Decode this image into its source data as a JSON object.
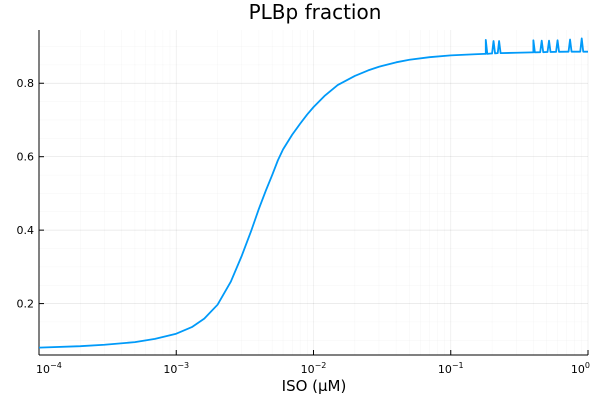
{
  "chart_data": {
    "type": "line",
    "title": "PLBp fraction",
    "xlabel": "ISO (μM)",
    "ylabel": "",
    "x_scale": "log10",
    "xlim": [
      0.0001,
      1
    ],
    "ylim": [
      0.06,
      0.945
    ],
    "x_ticks": [
      {
        "base": "10",
        "exp": "−4"
      },
      {
        "base": "10",
        "exp": "−3"
      },
      {
        "base": "10",
        "exp": "−2"
      },
      {
        "base": "10",
        "exp": "−1"
      },
      {
        "base": "10",
        "exp": "0"
      }
    ],
    "y_ticks": [
      "0.2",
      "0.4",
      "0.6",
      "0.8"
    ],
    "grid": true,
    "legend": "none",
    "line_color": "#009af9",
    "series": [
      {
        "x": [
          0.0001,
          0.0002,
          0.0003,
          0.0005,
          0.0007,
          0.001,
          0.0013,
          0.0016,
          0.002,
          0.0025,
          0.003,
          0.0035,
          0.004,
          0.0045,
          0.005,
          0.0055,
          0.006,
          0.007,
          0.008,
          0.009,
          0.01,
          0.012,
          0.015,
          0.02,
          0.025,
          0.03,
          0.04,
          0.05,
          0.07,
          0.1,
          0.15,
          0.18,
          0.2,
          0.22,
          0.3,
          0.4,
          0.5,
          0.7,
          1.0
        ],
        "y": [
          0.08,
          0.084,
          0.088,
          0.095,
          0.104,
          0.118,
          0.136,
          0.159,
          0.197,
          0.26,
          0.33,
          0.396,
          0.458,
          0.508,
          0.55,
          0.59,
          0.62,
          0.66,
          0.69,
          0.715,
          0.735,
          0.765,
          0.795,
          0.82,
          0.835,
          0.845,
          0.857,
          0.864,
          0.871,
          0.876,
          0.879,
          0.88,
          0.881,
          0.882,
          0.883,
          0.884,
          0.885,
          0.886,
          0.886
        ]
      }
    ],
    "spikes": [
      {
        "x": 0.18,
        "y": 0.918
      },
      {
        "x": 0.205,
        "y": 0.915
      },
      {
        "x": 0.225,
        "y": 0.915
      },
      {
        "x": 0.4,
        "y": 0.917
      },
      {
        "x": 0.46,
        "y": 0.916
      },
      {
        "x": 0.52,
        "y": 0.916
      },
      {
        "x": 0.6,
        "y": 0.917
      },
      {
        "x": 0.74,
        "y": 0.919
      },
      {
        "x": 0.9,
        "y": 0.922
      }
    ]
  }
}
